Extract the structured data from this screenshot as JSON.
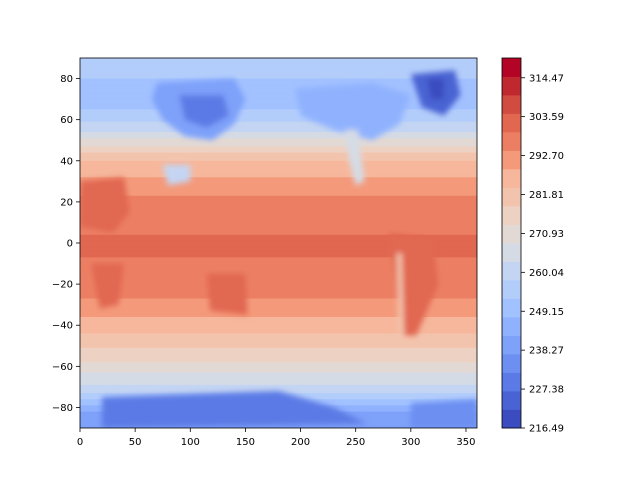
{
  "chart_data": {
    "type": "heatmap",
    "subtype": "filled-contour",
    "title": "",
    "xlabel": "",
    "ylabel": "",
    "xlim": [
      0,
      360
    ],
    "ylim": [
      -90,
      90
    ],
    "x_ticks": [
      0,
      50,
      100,
      150,
      200,
      250,
      300,
      350
    ],
    "y_ticks": [
      -80,
      -60,
      -40,
      -20,
      0,
      20,
      40,
      60,
      80
    ],
    "colormap": "coolwarm",
    "colorbar": {
      "ticks": [
        "216.49",
        "227.38",
        "238.27",
        "249.15",
        "260.04",
        "270.93",
        "281.81",
        "292.70",
        "303.59",
        "314.47"
      ],
      "range": [
        216.49,
        320.0
      ],
      "levels": 19,
      "colors": [
        "#3b4cc0",
        "#4a63d3",
        "#5b7ae5",
        "#6c8ff1",
        "#7ea1fa",
        "#90b2fe",
        "#a2c1ff",
        "#b3cdfb",
        "#c4d5f3",
        "#d5dbe5",
        "#e2d9d4",
        "#edd1c2",
        "#f3c4ad",
        "#f6b79c",
        "#f49a7b",
        "#ec7f63",
        "#e16751",
        "#d24b40",
        "#c0282f",
        "#b40426"
      ]
    },
    "field_description_rows": [
      {
        "lat": 85,
        "value": 255
      },
      {
        "lat": 70,
        "value": 248
      },
      {
        "lat": 55,
        "value": 262
      },
      {
        "lat": 40,
        "value": 284
      },
      {
        "lat": 20,
        "value": 296
      },
      {
        "lat": 0,
        "value": 300
      },
      {
        "lat": -20,
        "value": 298
      },
      {
        "lat": -40,
        "value": 287
      },
      {
        "lat": -55,
        "value": 276
      },
      {
        "lat": -70,
        "value": 262
      },
      {
        "lat": -85,
        "value": 238
      }
    ]
  }
}
